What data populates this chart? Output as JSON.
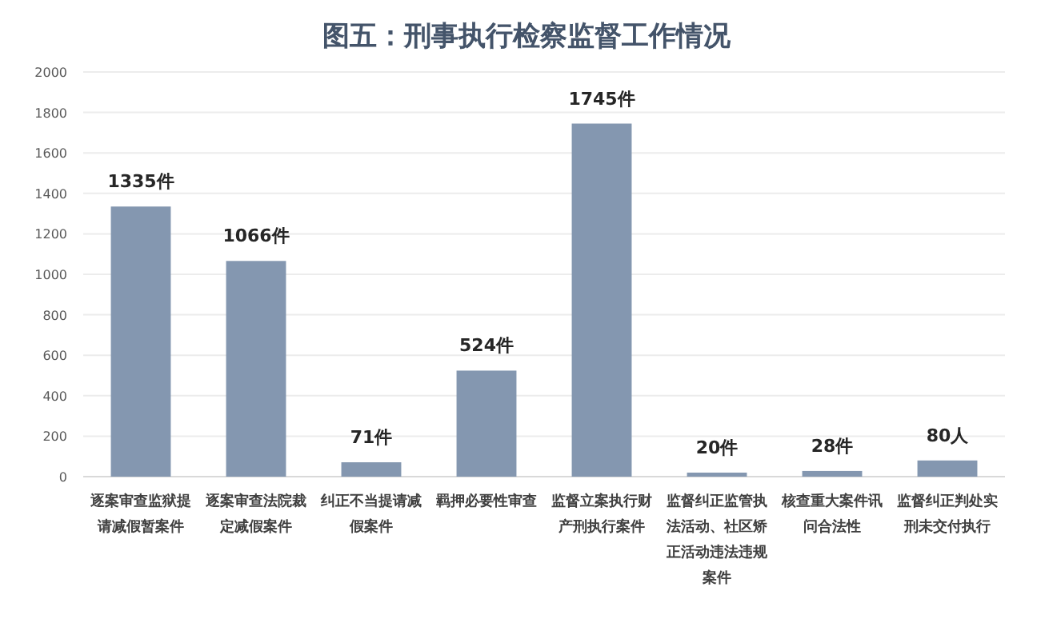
{
  "chart_data": {
    "type": "bar",
    "title": "图五：刑事执行检察监督工作情况",
    "categories": [
      "逐案审查监狱提请减假暂案件",
      "逐案审查法院裁定减假案件",
      "纠正不当提请减假案件",
      "羁押必要性审查",
      "监督立案执行财产刑执行案件",
      "监督纠正监管执法活动、社区矫正活动违法违规案件",
      "核查重大案件讯问合法性",
      "监督纠正判处实刑未交付执行"
    ],
    "values": [
      1335,
      1066,
      71,
      524,
      1745,
      20,
      28,
      80
    ],
    "value_labels": [
      "1335件",
      "1066件",
      "71件",
      "524件",
      "1745件",
      "20件",
      "28件",
      "80人"
    ],
    "color": "#8497b0",
    "ylim": [
      0,
      2000
    ],
    "yticks": [
      0,
      200,
      400,
      600,
      800,
      1000,
      1200,
      1400,
      1600,
      1800,
      2000
    ],
    "grid": "y"
  }
}
